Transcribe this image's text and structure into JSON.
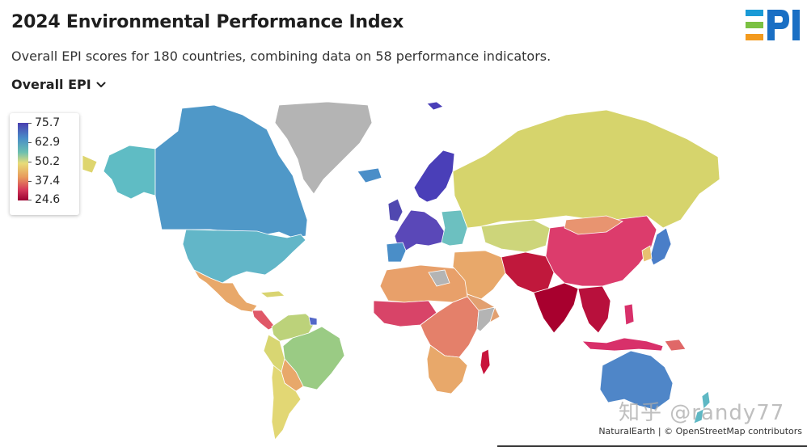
{
  "header": {
    "title": "2024 Environmental Performance Index",
    "subtitle": "Overall EPI scores for 180 countries, combining data on 58 performance indicators."
  },
  "dropdown": {
    "selected": "Overall EPI",
    "icon": "chevron-down-icon"
  },
  "logo": {
    "text": "EPI",
    "stripe_colors": [
      "#1a9ad6",
      "#7bc143",
      "#f39a1e"
    ],
    "letter_color": "#1a6fc4"
  },
  "legend": {
    "labels": [
      "75.7",
      "62.9",
      "50.2",
      "37.4",
      "24.6"
    ],
    "colors": [
      "#4a3fb0",
      "#4a8ec8",
      "#e8dc78",
      "#d63a5a",
      "#9a0030"
    ]
  },
  "map": {
    "no_data_color": "#b4b4b4"
  },
  "watermark": {
    "text": "知乎 @randy77"
  },
  "attribution": {
    "text": "NaturalEarth | © OpenStreetMap contributors"
  }
}
